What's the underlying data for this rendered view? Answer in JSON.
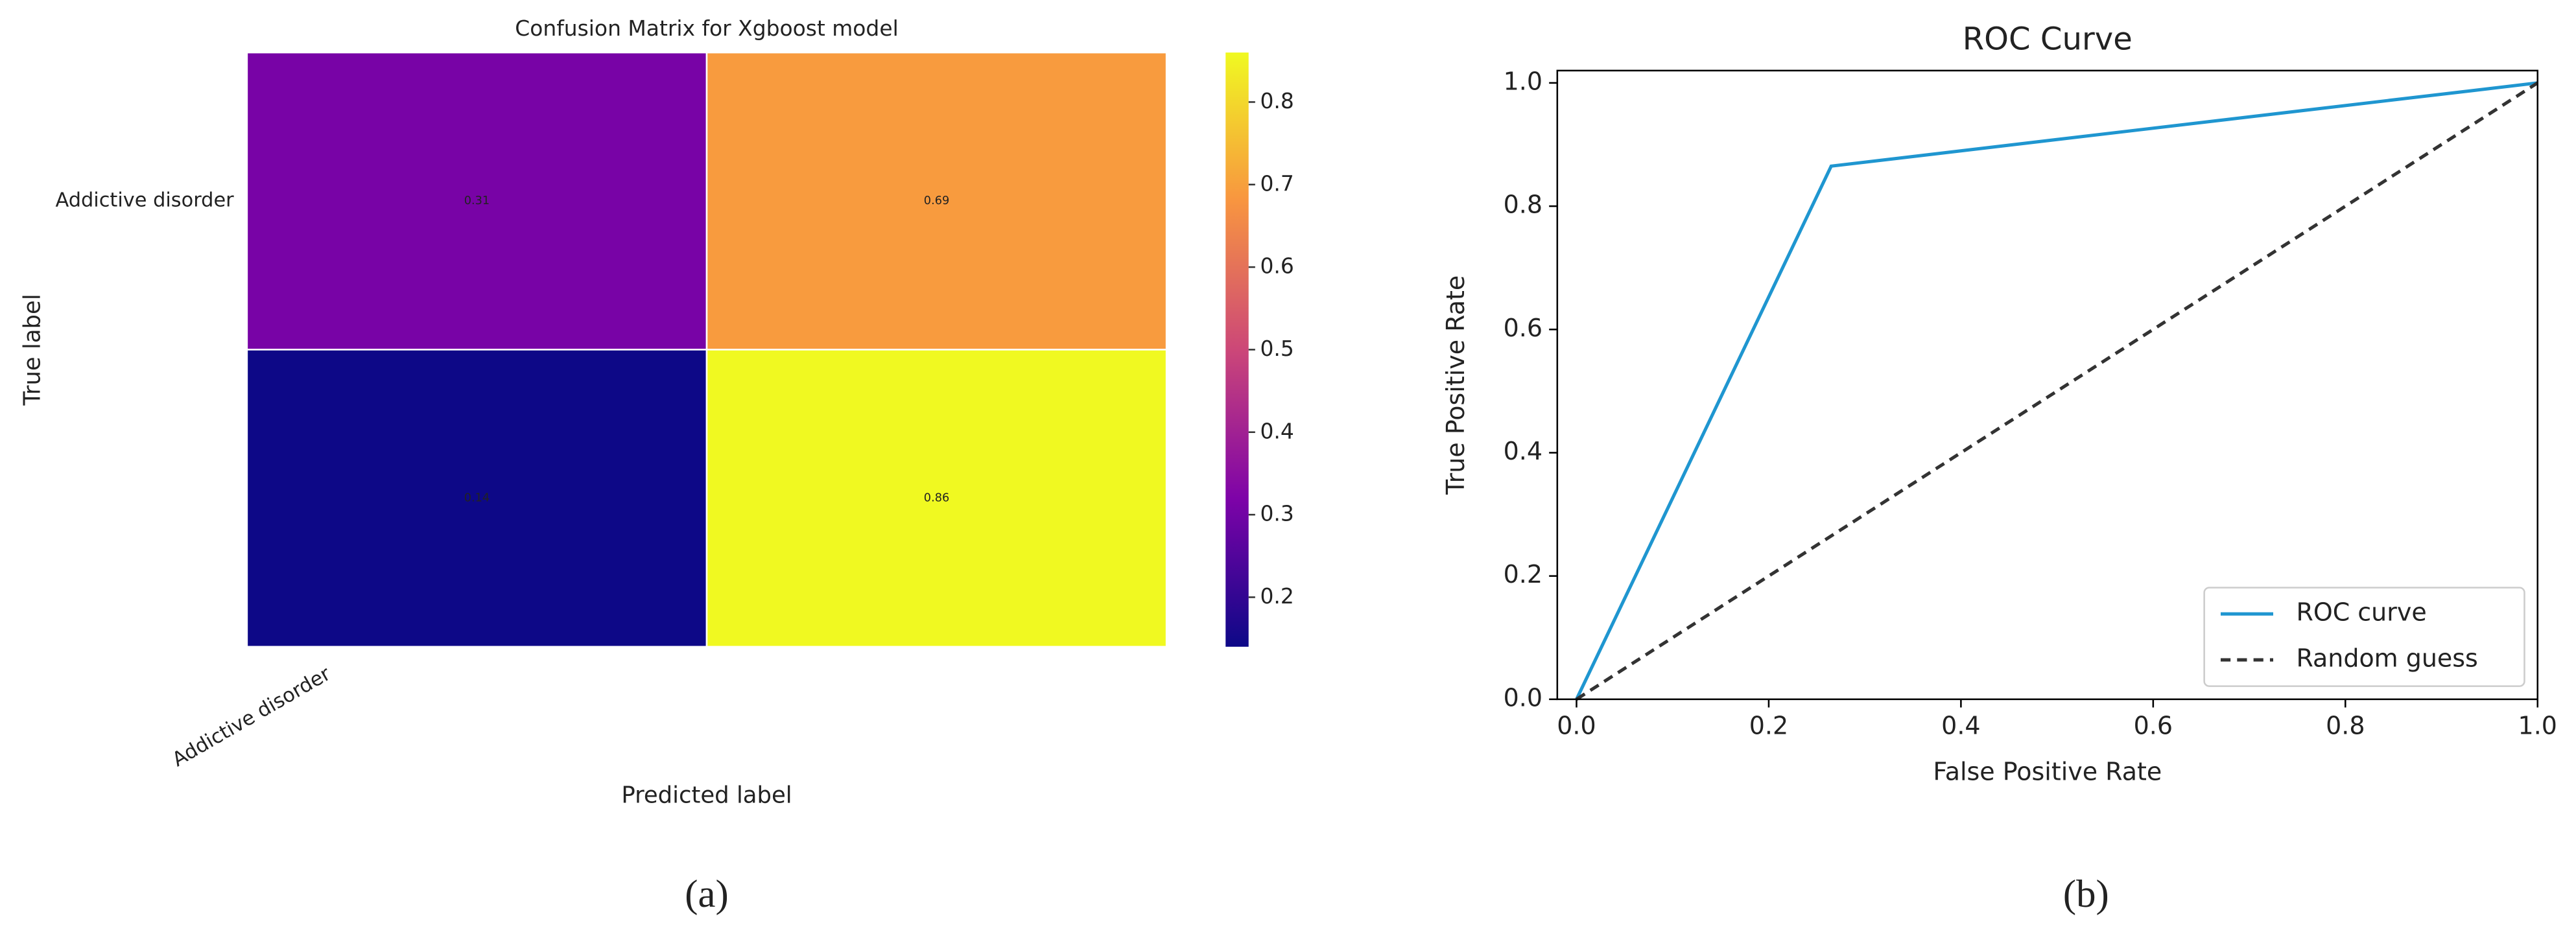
{
  "chart_data": [
    {
      "type": "heatmap",
      "title": "Confusion Matrix for Xgboost model",
      "x_label": "Predicted label",
      "y_label": "True label",
      "x_categories": [
        "Addictive disorder",
        null
      ],
      "y_categories": [
        "Addictive disorder",
        null
      ],
      "values": [
        [
          0.31,
          0.69
        ],
        [
          0.14,
          0.86
        ]
      ],
      "colormap": "plasma",
      "clim": [
        0.14,
        0.86
      ],
      "cticks": [
        0.2,
        0.3,
        0.4,
        0.5,
        0.6,
        0.7,
        0.8
      ],
      "panel_label": "(a)"
    },
    {
      "type": "line",
      "title": "ROC Curve",
      "x_label": "False Positive Rate",
      "y_label": "True Positive Rate",
      "series": [
        {
          "name": "ROC curve",
          "color": "#1f96d0",
          "dash": false,
          "x": [
            0,
            0.265,
            1
          ],
          "values": [
            0,
            0.865,
            1
          ]
        },
        {
          "name": "Random guess",
          "color": "#333333",
          "dash": true,
          "x": [
            0,
            1
          ],
          "values": [
            0,
            1
          ]
        }
      ],
      "xlim": [
        -0.02,
        1
      ],
      "ylim": [
        0,
        1.02
      ],
      "xticks": [
        {
          "value": 0,
          "label": "0.0"
        },
        0.2,
        0.4,
        0.6,
        0.8,
        {
          "value": 1,
          "label": "1.0"
        }
      ],
      "yticks": [
        {
          "value": 0,
          "label": "0.0"
        },
        0.2,
        0.4,
        0.6,
        0.8,
        {
          "value": 1,
          "label": "1.0"
        }
      ],
      "legend": "lower right",
      "panel_label": "(b)"
    }
  ]
}
